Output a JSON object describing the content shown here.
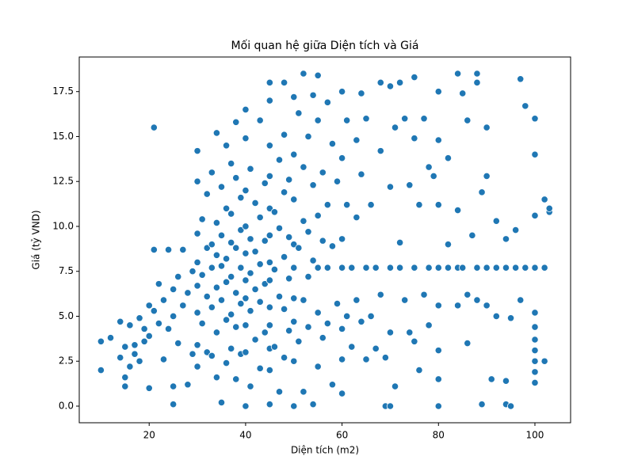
{
  "chart_data": {
    "type": "scatter",
    "title": "Mối quan hệ giữa Diện tích và Giá",
    "x_label": "Diện tích (m2)",
    "y_label": "Giá (tỷ VND)",
    "color": "#1f77b4",
    "xlim": [
      5.5,
      107.4
    ],
    "ylim": [
      -0.925,
      19.425
    ],
    "xticks": [
      20,
      40,
      60,
      80,
      100
    ],
    "yticks": [
      {
        "value": 0,
        "label": "0.0"
      },
      2.5,
      {
        "value": 5,
        "label": "5.0"
      },
      7.5,
      {
        "value": 10,
        "label": "10.0"
      },
      12.5,
      {
        "value": 15,
        "label": "15.0"
      },
      17.5
    ],
    "x": [
      10,
      10,
      12,
      14,
      14,
      15,
      15,
      15,
      16,
      16,
      17,
      17,
      18,
      18,
      19,
      19,
      20,
      20,
      20,
      21,
      21,
      21,
      22,
      22,
      23,
      23,
      24,
      24,
      25,
      25,
      25,
      25,
      26,
      26,
      27,
      27,
      28,
      28,
      29,
      29,
      30,
      30,
      30,
      30,
      30,
      30,
      30,
      30,
      31,
      31,
      31,
      32,
      32,
      32,
      32,
      33,
      33,
      33,
      33,
      33,
      34,
      34,
      34,
      34,
      34,
      34,
      35,
      35,
      35,
      35,
      35,
      36,
      36,
      36,
      36,
      36,
      36,
      37,
      37,
      37,
      37,
      37,
      37,
      38,
      38,
      38,
      38,
      38,
      38,
      39,
      39,
      39,
      39,
      39,
      40,
      40,
      40,
      40,
      40,
      40,
      40,
      40,
      40,
      40,
      41,
      41,
      41,
      41,
      41,
      42,
      42,
      42,
      42,
      43,
      43,
      43,
      43,
      43,
      44,
      44,
      44,
      44,
      45,
      45,
      45,
      45,
      45,
      45,
      45,
      45,
      45,
      45,
      45,
      45,
      45,
      46,
      46,
      46,
      47,
      47,
      47,
      47,
      48,
      48,
      48,
      48,
      48,
      48,
      49,
      49,
      49,
      49,
      50,
      50,
      50,
      50,
      50,
      50,
      50,
      50,
      50,
      51,
      51,
      51,
      52,
      52,
      52,
      52,
      52,
      53,
      53,
      53,
      53,
      54,
      54,
      54,
      54,
      55,
      55,
      55,
      55,
      55,
      55,
      56,
      56,
      56,
      57,
      57,
      57,
      57,
      58,
      58,
      58,
      59,
      59,
      60,
      60,
      60,
      60,
      60,
      60,
      60,
      61,
      61,
      61,
      62,
      62,
      63,
      63,
      63,
      64,
      64,
      64,
      65,
      65,
      65,
      66,
      66,
      67,
      67,
      68,
      68,
      68,
      69,
      69,
      70,
      70,
      70,
      70,
      70,
      71,
      71,
      72,
      72,
      72,
      73,
      73,
      74,
      74,
      75,
      75,
      75,
      75,
      76,
      76,
      77,
      77,
      78,
      78,
      78,
      79,
      80,
      80,
      80,
      80,
      80,
      80,
      80,
      80,
      82,
      82,
      82,
      84,
      84,
      84,
      84,
      85,
      85,
      86,
      86,
      86,
      87,
      88,
      88,
      88,
      88,
      89,
      89,
      90,
      90,
      90,
      90,
      91,
      92,
      92,
      92,
      94,
      94,
      94,
      94,
      95,
      95,
      96,
      96,
      97,
      97,
      98,
      98,
      100,
      100,
      100,
      100,
      100,
      100,
      100,
      100,
      100,
      100,
      100,
      102,
      102,
      102,
      103,
      103
    ],
    "y": [
      3.6,
      2,
      3.8,
      4.7,
      2.7,
      1.1,
      1.6,
      3.3,
      2.2,
      4.5,
      3.4,
      2.9,
      4.9,
      2.5,
      3.6,
      4.3,
      1,
      5.6,
      3.9,
      15.5,
      8.7,
      5.3,
      6.8,
      4.6,
      5.9,
      2.6,
      8.7,
      4.3,
      0.1,
      1.1,
      6.5,
      5,
      7.2,
      3.5,
      8.7,
      5.6,
      6.3,
      1.2,
      7.5,
      2.9,
      14.2,
      12.5,
      9.6,
      8,
      6.7,
      5.2,
      3.4,
      2.2,
      10.4,
      7.3,
      4.6,
      11.8,
      8.8,
      6.1,
      3,
      13,
      9,
      7.7,
      5.5,
      2.8,
      15.2,
      10.2,
      8.4,
      6.6,
      4.1,
      1.6,
      12.2,
      9.5,
      7.8,
      5.9,
      0.2,
      14.5,
      11,
      8.2,
      6.9,
      4.8,
      2.4,
      13.5,
      10.7,
      9.1,
      7.2,
      5.1,
      3.2,
      15.8,
      12.7,
      8.8,
      6.3,
      4.4,
      1.5,
      11.6,
      9.8,
      7.7,
      5.7,
      2.9,
      16.5,
      14.9,
      12,
      10,
      8.5,
      7,
      6,
      4.5,
      3,
      0,
      13.2,
      9.3,
      7.4,
      5.3,
      1.1,
      11.3,
      8.6,
      6.5,
      3.7,
      15.9,
      10.5,
      7.9,
      5.8,
      2.1,
      12.4,
      9.2,
      6.8,
      4.1,
      18,
      17,
      14.5,
      12.8,
      11,
      9.5,
      8,
      7,
      5.5,
      4.5,
      3.2,
      2,
      0.1,
      10.8,
      7.6,
      3.3,
      13.7,
      9.9,
      6.1,
      0.8,
      18,
      15.1,
      11.9,
      8.3,
      5.4,
      2.7,
      12.6,
      9.4,
      7.1,
      4.2,
      17.2,
      14,
      11.5,
      9,
      7.7,
      6,
      4.7,
      2.5,
      0,
      16.3,
      8.8,
      3.6,
      18.5,
      13.3,
      10.3,
      5.9,
      0.8,
      15,
      9.7,
      7.2,
      4.4,
      17.3,
      12.3,
      8.1,
      0.1,
      18.4,
      15.9,
      10.6,
      7.7,
      5.2,
      2.2,
      13,
      9.2,
      3.8,
      16.9,
      11.2,
      7.7,
      4.6,
      14.6,
      8.9,
      1.2,
      12.5,
      5.7,
      17.5,
      13.8,
      9.3,
      7.7,
      4.3,
      2.6,
      0.7,
      15.9,
      11.2,
      5,
      7.7,
      3.3,
      14.8,
      10.5,
      5.9,
      17.4,
      12.9,
      4.7,
      16,
      7.7,
      2.6,
      11.2,
      5,
      7.7,
      3.2,
      18,
      14.2,
      6.2,
      2.7,
      0,
      17.8,
      12.2,
      7.7,
      4.1,
      0,
      15.5,
      1.1,
      18,
      9.1,
      7.7,
      16,
      5.9,
      12.3,
      4.1,
      18.3,
      14.9,
      7.7,
      3.6,
      11.2,
      2,
      16,
      6.2,
      13.3,
      7.7,
      4.5,
      12.8,
      17.5,
      14.8,
      11.2,
      7.7,
      5.6,
      3.1,
      1.5,
      0,
      13.8,
      7.7,
      9,
      18.5,
      10.9,
      7.7,
      5.6,
      17.4,
      7.7,
      15.9,
      6.2,
      3.5,
      9.5,
      18.5,
      18,
      7.7,
      5.9,
      11.9,
      0.1,
      15.5,
      12.8,
      7.7,
      5.6,
      1.5,
      10.3,
      7.7,
      5,
      9.3,
      7.7,
      1.4,
      0.1,
      4.9,
      0,
      9.8,
      7.7,
      18.2,
      5.9,
      16.7,
      7.7,
      16,
      14,
      10.6,
      7.7,
      5.2,
      4.4,
      3.7,
      3.1,
      2.5,
      1.9,
      1.3,
      2.5,
      7.7,
      11.5,
      10.8,
      11
    ]
  }
}
